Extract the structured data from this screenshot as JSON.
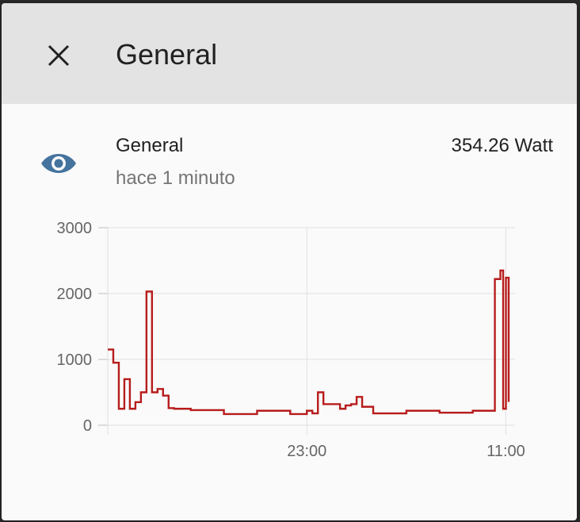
{
  "dialog": {
    "title": "General",
    "close_icon": "close-icon"
  },
  "entity": {
    "icon": "eye-icon",
    "icon_color": "#44739e",
    "name": "General",
    "last_changed": "hace 1 minuto",
    "state": "354.26 Watt"
  },
  "chart_data": {
    "type": "line",
    "series": [
      {
        "color": "#b71c1c",
        "x": [
          "11:00",
          "11:20",
          "11:40",
          "12:00",
          "12:20",
          "12:40",
          "13:00",
          "13:20",
          "13:40",
          "14:00",
          "14:20",
          "14:40",
          "15:00",
          "16:00",
          "18:00",
          "20:00",
          "22:00",
          "23:00",
          "23:20",
          "23:40",
          "00:00",
          "01:00",
          "01:20",
          "01:40",
          "02:00",
          "02:20",
          "03:00",
          "05:00",
          "07:00",
          "09:00",
          "10:20",
          "10:40",
          "10:50",
          "11:00",
          "11:10"
        ],
        "values": [
          1150,
          950,
          250,
          700,
          250,
          350,
          500,
          2030,
          500,
          550,
          450,
          260,
          250,
          230,
          170,
          220,
          170,
          220,
          180,
          500,
          320,
          250,
          300,
          320,
          430,
          280,
          180,
          220,
          190,
          220,
          2220,
          2350,
          250,
          2240,
          354
        ]
      }
    ],
    "x_ticks": [
      "23:00",
      "11:00"
    ],
    "y_ticks": [
      0,
      1000,
      2000,
      3000
    ],
    "ylim": [
      0,
      3000
    ],
    "grid": true
  }
}
